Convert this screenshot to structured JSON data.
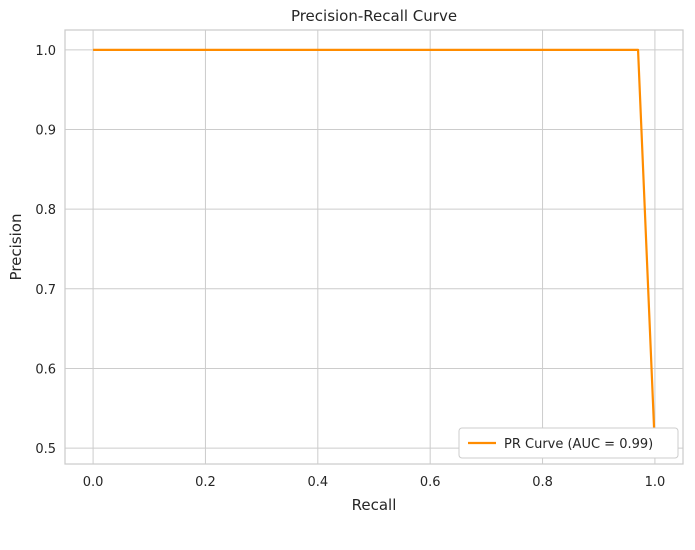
{
  "chart_data": {
    "type": "line",
    "title": "Precision-Recall Curve",
    "xlabel": "Recall",
    "ylabel": "Precision",
    "xlim": [
      -0.05,
      1.05
    ],
    "ylim": [
      0.48,
      1.025
    ],
    "xticks": [
      0.0,
      0.2,
      0.4,
      0.6,
      0.8,
      1.0
    ],
    "xtick_labels": [
      "0.0",
      "0.2",
      "0.4",
      "0.6",
      "0.8",
      "1.0"
    ],
    "yticks": [
      0.5,
      0.6,
      0.7,
      0.8,
      0.9,
      1.0
    ],
    "ytick_labels": [
      "0.5",
      "0.6",
      "0.7",
      "0.8",
      "0.9",
      "1.0"
    ],
    "grid": true,
    "legend_position": "lower-right",
    "series": [
      {
        "name": "PR Curve (AUC = 0.99)",
        "color": "#ff8c00",
        "x": [
          0.0,
          0.97,
          1.0
        ],
        "y": [
          1.0,
          1.0,
          0.5
        ]
      }
    ]
  }
}
